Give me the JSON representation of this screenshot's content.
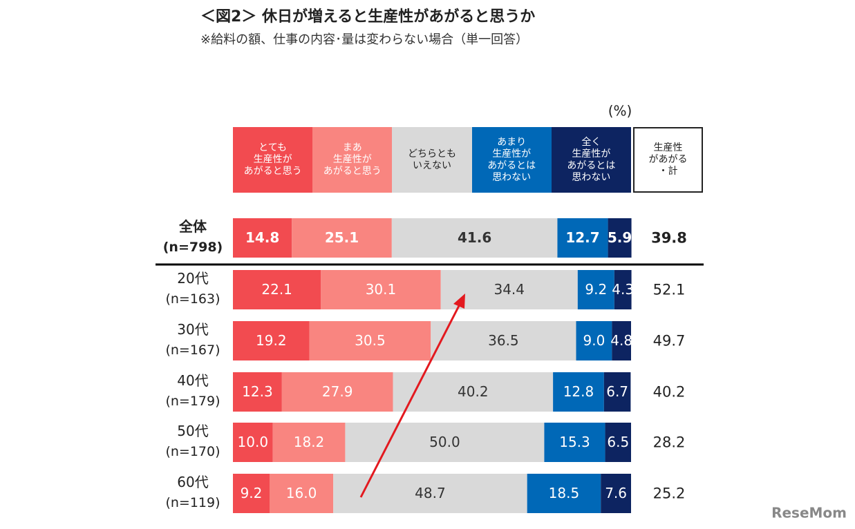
{
  "chart_data": {
    "type": "stacked-bar",
    "title": "＜図2＞ 休日が増えると生産性があがると思うか",
    "subtitle": "※給料の額、仕事の内容･量は変わらない場合（単一回答）",
    "unit_label": "(%)",
    "categories": [
      "全体",
      "20代",
      "30代",
      "40代",
      "50代",
      "60代"
    ],
    "sample_sizes": [
      "(n=798)",
      "(n=163)",
      "(n=167)",
      "(n=179)",
      "(n=170)",
      "(n=119)"
    ],
    "xlim": [
      0,
      100
    ],
    "series": [
      {
        "name": "とても\n生産性が\nあがると思う",
        "color": "#f24b50",
        "values": [
          14.8,
          22.1,
          19.2,
          12.3,
          10.0,
          9.2
        ],
        "value_labels": [
          "14.8",
          "22.1",
          "19.2",
          "12.3",
          "10.0",
          "9.2"
        ]
      },
      {
        "name": "まあ\n生産性が\nあがると思う",
        "color": "#f98580",
        "values": [
          25.1,
          30.1,
          30.5,
          27.9,
          18.2,
          16.0
        ],
        "value_labels": [
          "25.1",
          "30.1",
          "30.5",
          "27.9",
          "18.2",
          "16.0"
        ]
      },
      {
        "name": "どちらとも\nいえない",
        "color": "#d9d9d9",
        "values": [
          41.6,
          34.4,
          36.5,
          40.2,
          50.0,
          48.7
        ],
        "value_labels": [
          "41.6",
          "34.4",
          "36.5",
          "40.2",
          "50.0",
          "48.7"
        ]
      },
      {
        "name": "あまり\n生産性が\nあがるとは\n思わない",
        "color": "#0068b7",
        "values": [
          12.7,
          9.2,
          9.0,
          12.8,
          15.3,
          18.5
        ],
        "value_labels": [
          "12.7",
          "9.2",
          "9.0",
          "12.8",
          "15.3",
          "18.5"
        ]
      },
      {
        "name": "全く\n生産性が\nあがるとは\n思わない",
        "color": "#0d2461",
        "values": [
          5.9,
          4.3,
          4.8,
          6.7,
          6.5,
          7.6
        ]
      }
    ],
    "totals": {
      "name": "生産性\nがあがる\n・計",
      "values": [
        39.8,
        52.1,
        49.7,
        40.2,
        28.2,
        25.2
      ]
    },
    "watermark": "ReseMom"
  }
}
